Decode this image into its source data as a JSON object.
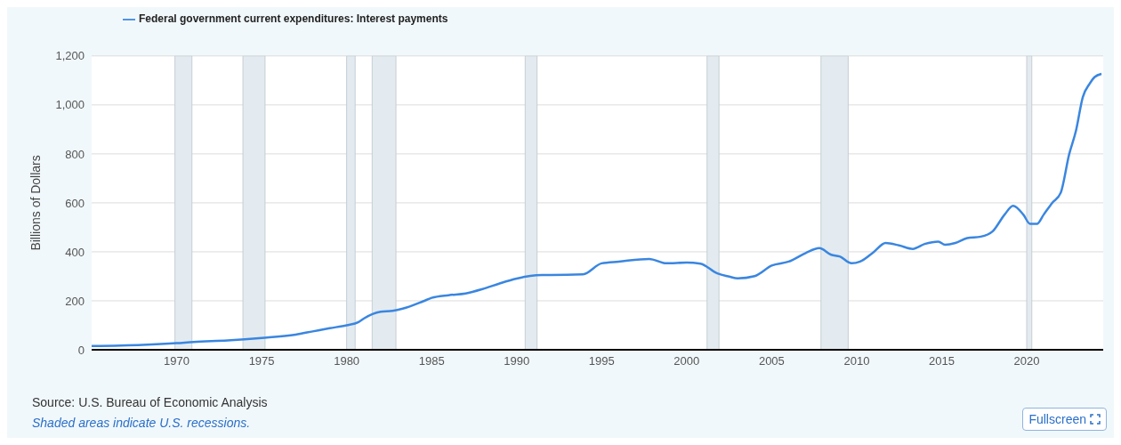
{
  "chart_data": {
    "type": "line",
    "ylabel": "Billions of Dollars",
    "legend": "top left",
    "grid": "y",
    "line_style": "solid",
    "marker": "none",
    "xlim": [
      1965,
      2024.5
    ],
    "xticks": [
      1970,
      1975,
      1980,
      1985,
      1990,
      1995,
      2000,
      2005,
      2010,
      2015,
      2020
    ],
    "ylim": [
      0,
      1200
    ],
    "yticks": [
      0,
      200,
      400,
      600,
      800,
      {
        "value": 1000,
        "label": "1,000"
      },
      {
        "value": 1200,
        "label": "1,200"
      }
    ],
    "series": [
      {
        "name": "Federal government current expenditures: Interest payments",
        "color": "#3a86e0",
        "x": [
          1965,
          1968,
          1970,
          1971,
          1973,
          1975,
          1977,
          1978,
          1979,
          1980,
          1980.7,
          1981,
          1982,
          1982.7,
          1983.3,
          1984.5,
          1985,
          1986,
          1987,
          1988,
          1989,
          1990,
          1990.8,
          1991.5,
          1992,
          1993.9,
          1995,
          1996,
          1997.8,
          1998.8,
          2000,
          2000.8,
          2001.8,
          2002.5,
          2003,
          2004,
          2005,
          2006,
          2007,
          2007.8,
          2008.5,
          2009,
          2009.7,
          2010.2,
          2011,
          2011.7,
          2012.5,
          2013.3,
          2014,
          2014.8,
          2015.2,
          2015.8,
          2016.5,
          2017.3,
          2018,
          2018.7,
          2019.2,
          2019.8,
          2020.2,
          2020.6,
          2021,
          2021.5,
          2022,
          2022.5,
          2022.9,
          2023.3,
          2023.7,
          2024,
          2024.4
        ],
        "values": [
          15,
          20,
          27,
          32,
          38,
          48,
          62,
          75,
          88,
          100,
          113,
          127,
          155,
          159,
          168,
          198,
          212,
          223,
          230,
          248,
          271,
          291,
          302,
          305,
          305,
          308,
          353,
          360,
          371,
          353,
          356,
          352,
          312,
          299,
          292,
          301,
          344,
          360,
          395,
          415,
          388,
          381,
          353,
          360,
          399,
          436,
          426,
          412,
          432,
          442,
          429,
          436,
          456,
          462,
          484,
          552,
          588,
          552,
          514,
          514,
          552,
          600,
          641,
          799,
          895,
          1032,
          1086,
          1114,
          1127
        ]
      }
    ],
    "bands": [
      {
        "axis": "x",
        "from": 1969.9,
        "to": 1970.9,
        "color": "#e3ebf0"
      },
      {
        "axis": "x",
        "from": 1973.9,
        "to": 1975.2,
        "color": "#e3ebf0"
      },
      {
        "axis": "x",
        "from": 1980,
        "to": 1980.5,
        "color": "#e3ebf0"
      },
      {
        "axis": "x",
        "from": 1981.5,
        "to": 1982.9,
        "color": "#e3ebf0"
      },
      {
        "axis": "x",
        "from": 1990.5,
        "to": 1991.2,
        "color": "#e3ebf0"
      },
      {
        "axis": "x",
        "from": 2001.2,
        "to": 2001.9,
        "color": "#e3ebf0"
      },
      {
        "axis": "x",
        "from": 2007.9,
        "to": 2009.5,
        "color": "#e3ebf0"
      },
      {
        "axis": "x",
        "from": 2020,
        "to": 2020.3,
        "color": "#e3ebf0"
      }
    ],
    "annotations": [
      "Source: U.S. Bureau of Economic Analysis",
      "Shaded areas indicate U.S. recessions.",
      "Fullscreen"
    ]
  }
}
